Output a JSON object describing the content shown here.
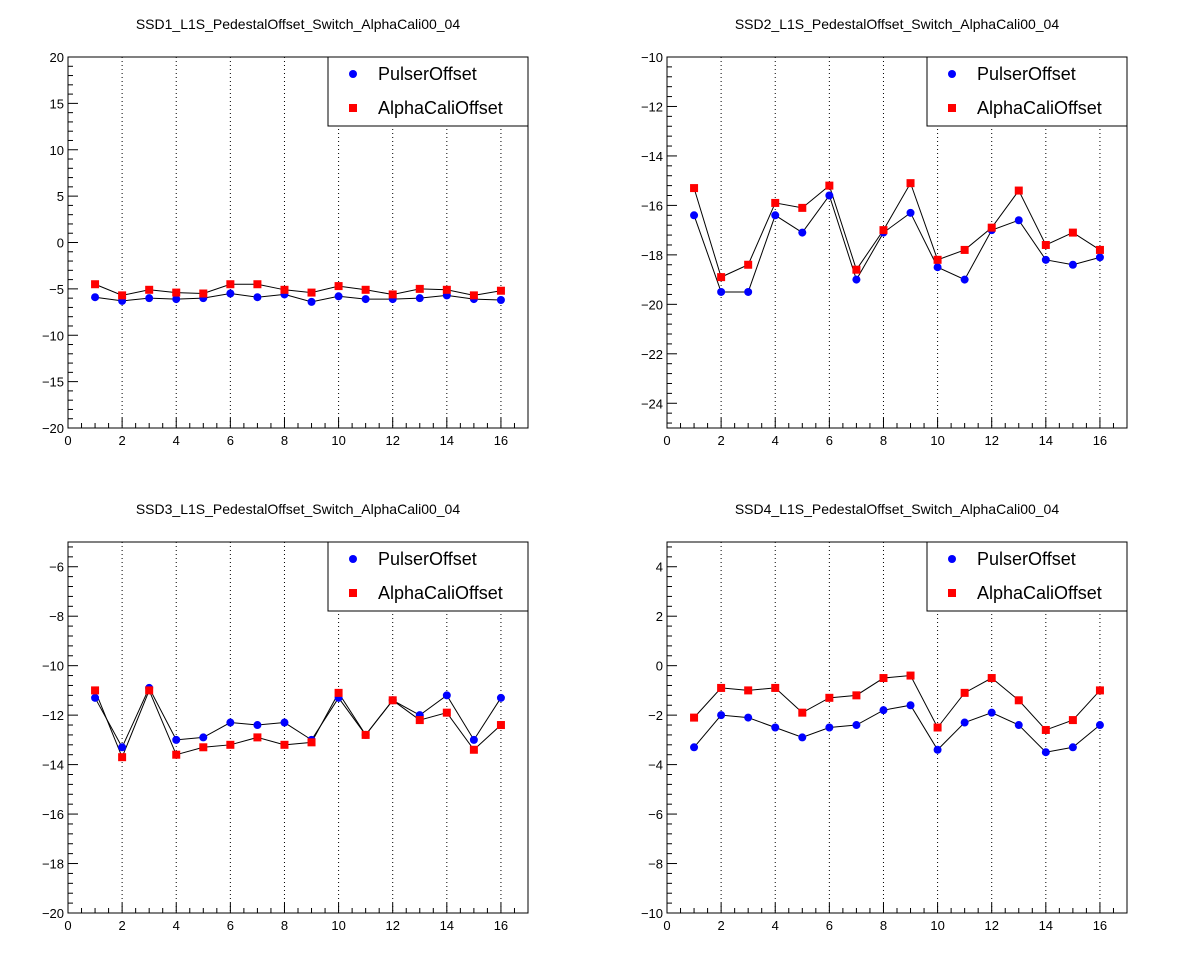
{
  "colors": {
    "pulser": "#0000ff",
    "alpha": "#ff0000",
    "frame": "#000000"
  },
  "chart_data": [
    {
      "type": "scatter",
      "title": "SSD1_L1S_PedestalOffset_Switch_AlphaCali00_04",
      "xlim": [
        0,
        17
      ],
      "ylim": [
        -20,
        20
      ],
      "x_ticks": [
        0,
        2,
        4,
        6,
        8,
        10,
        12,
        14,
        16
      ],
      "y_ticks": [
        -20,
        -15,
        -10,
        -5,
        0,
        5,
        10,
        15,
        20
      ],
      "x_grid": true,
      "y_grid": false,
      "legend": "top-right",
      "x": [
        1,
        2,
        3,
        4,
        5,
        6,
        7,
        8,
        9,
        10,
        11,
        12,
        13,
        14,
        15,
        16
      ],
      "series": [
        {
          "name": "PulserOffset",
          "marker": "circle",
          "color": "#0000ff",
          "values": [
            -5.9,
            -6.3,
            -6.0,
            -6.1,
            -6.0,
            -5.5,
            -5.9,
            -5.6,
            -6.4,
            -5.8,
            -6.1,
            -6.1,
            -6.0,
            -5.7,
            -6.1,
            -6.2
          ]
        },
        {
          "name": "AlphaCaliOffset",
          "marker": "square",
          "color": "#ff0000",
          "values": [
            -4.5,
            -5.7,
            -5.1,
            -5.4,
            -5.5,
            -4.5,
            -4.5,
            -5.1,
            -5.4,
            -4.7,
            -5.1,
            -5.6,
            -5.0,
            -5.1,
            -5.7,
            -5.2
          ]
        }
      ]
    },
    {
      "type": "scatter",
      "title": "SSD2_L1S_PedestalOffset_Switch_AlphaCali00_04",
      "xlim": [
        0,
        17
      ],
      "ylim": [
        -25,
        -10
      ],
      "x_ticks": [
        0,
        2,
        4,
        6,
        8,
        10,
        12,
        14,
        16
      ],
      "y_ticks": [
        -24,
        -22,
        -20,
        -18,
        -16,
        -14,
        -12,
        -10
      ],
      "x_grid": true,
      "y_grid": false,
      "legend": "top-right",
      "x": [
        1,
        2,
        3,
        4,
        5,
        6,
        7,
        8,
        9,
        10,
        11,
        12,
        13,
        14,
        15,
        16
      ],
      "series": [
        {
          "name": "PulserOffset",
          "marker": "circle",
          "color": "#0000ff",
          "values": [
            -16.4,
            -19.5,
            -19.5,
            -16.4,
            -17.1,
            -15.6,
            -19.0,
            -17.1,
            -16.3,
            -18.5,
            -19.0,
            -17.0,
            -16.6,
            -18.2,
            -18.4,
            -18.1
          ]
        },
        {
          "name": "AlphaCaliOffset",
          "marker": "square",
          "color": "#ff0000",
          "values": [
            -15.3,
            -18.9,
            -18.4,
            -15.9,
            -16.1,
            -15.2,
            -18.6,
            -17.0,
            -15.1,
            -18.2,
            -17.8,
            -16.9,
            -15.4,
            -17.6,
            -17.1,
            -17.8
          ]
        }
      ]
    },
    {
      "type": "scatter",
      "title": "SSD3_L1S_PedestalOffset_Switch_AlphaCali00_04",
      "xlim": [
        0,
        17
      ],
      "ylim": [
        -20,
        -5
      ],
      "x_ticks": [
        0,
        2,
        4,
        6,
        8,
        10,
        12,
        14,
        16
      ],
      "y_ticks": [
        -20,
        -18,
        -16,
        -14,
        -12,
        -10,
        -8,
        -6
      ],
      "x_grid": true,
      "y_grid": false,
      "legend": "top-right",
      "x": [
        1,
        2,
        3,
        4,
        5,
        6,
        7,
        8,
        9,
        10,
        11,
        12,
        13,
        14,
        15,
        16
      ],
      "series": [
        {
          "name": "PulserOffset",
          "marker": "circle",
          "color": "#0000ff",
          "values": [
            -11.3,
            -13.3,
            -10.9,
            -13.0,
            -12.9,
            -12.3,
            -12.4,
            -12.3,
            -13.0,
            -11.3,
            -12.8,
            -11.4,
            -12.0,
            -11.2,
            -13.0,
            -11.3
          ]
        },
        {
          "name": "AlphaCaliOffset",
          "marker": "square",
          "color": "#ff0000",
          "values": [
            -11.0,
            -13.7,
            -11.0,
            -13.6,
            -13.3,
            -13.2,
            -12.9,
            -13.2,
            -13.1,
            -11.1,
            -12.8,
            -11.4,
            -12.2,
            -11.9,
            -13.4,
            -12.4
          ]
        }
      ]
    },
    {
      "type": "scatter",
      "title": "SSD4_L1S_PedestalOffset_Switch_AlphaCali00_04",
      "xlim": [
        0,
        17
      ],
      "ylim": [
        -10,
        5
      ],
      "x_ticks": [
        0,
        2,
        4,
        6,
        8,
        10,
        12,
        14,
        16
      ],
      "y_ticks": [
        -10,
        -8,
        -6,
        -4,
        -2,
        0,
        2,
        4
      ],
      "x_grid": true,
      "y_grid": false,
      "legend": "top-right",
      "x": [
        1,
        2,
        3,
        4,
        5,
        6,
        7,
        8,
        9,
        10,
        11,
        12,
        13,
        14,
        15,
        16
      ],
      "series": [
        {
          "name": "PulserOffset",
          "marker": "circle",
          "color": "#0000ff",
          "values": [
            -3.3,
            -2.0,
            -2.1,
            -2.5,
            -2.9,
            -2.5,
            -2.4,
            -1.8,
            -1.6,
            -3.4,
            -2.3,
            -1.9,
            -2.4,
            -3.5,
            -3.3,
            -2.4
          ]
        },
        {
          "name": "AlphaCaliOffset",
          "marker": "square",
          "color": "#ff0000",
          "values": [
            -2.1,
            -0.9,
            -1.0,
            -0.9,
            -1.9,
            -1.3,
            -1.2,
            -0.5,
            -0.4,
            -2.5,
            -1.1,
            -0.5,
            -1.4,
            -2.6,
            -2.2,
            -1.0
          ]
        }
      ]
    }
  ]
}
